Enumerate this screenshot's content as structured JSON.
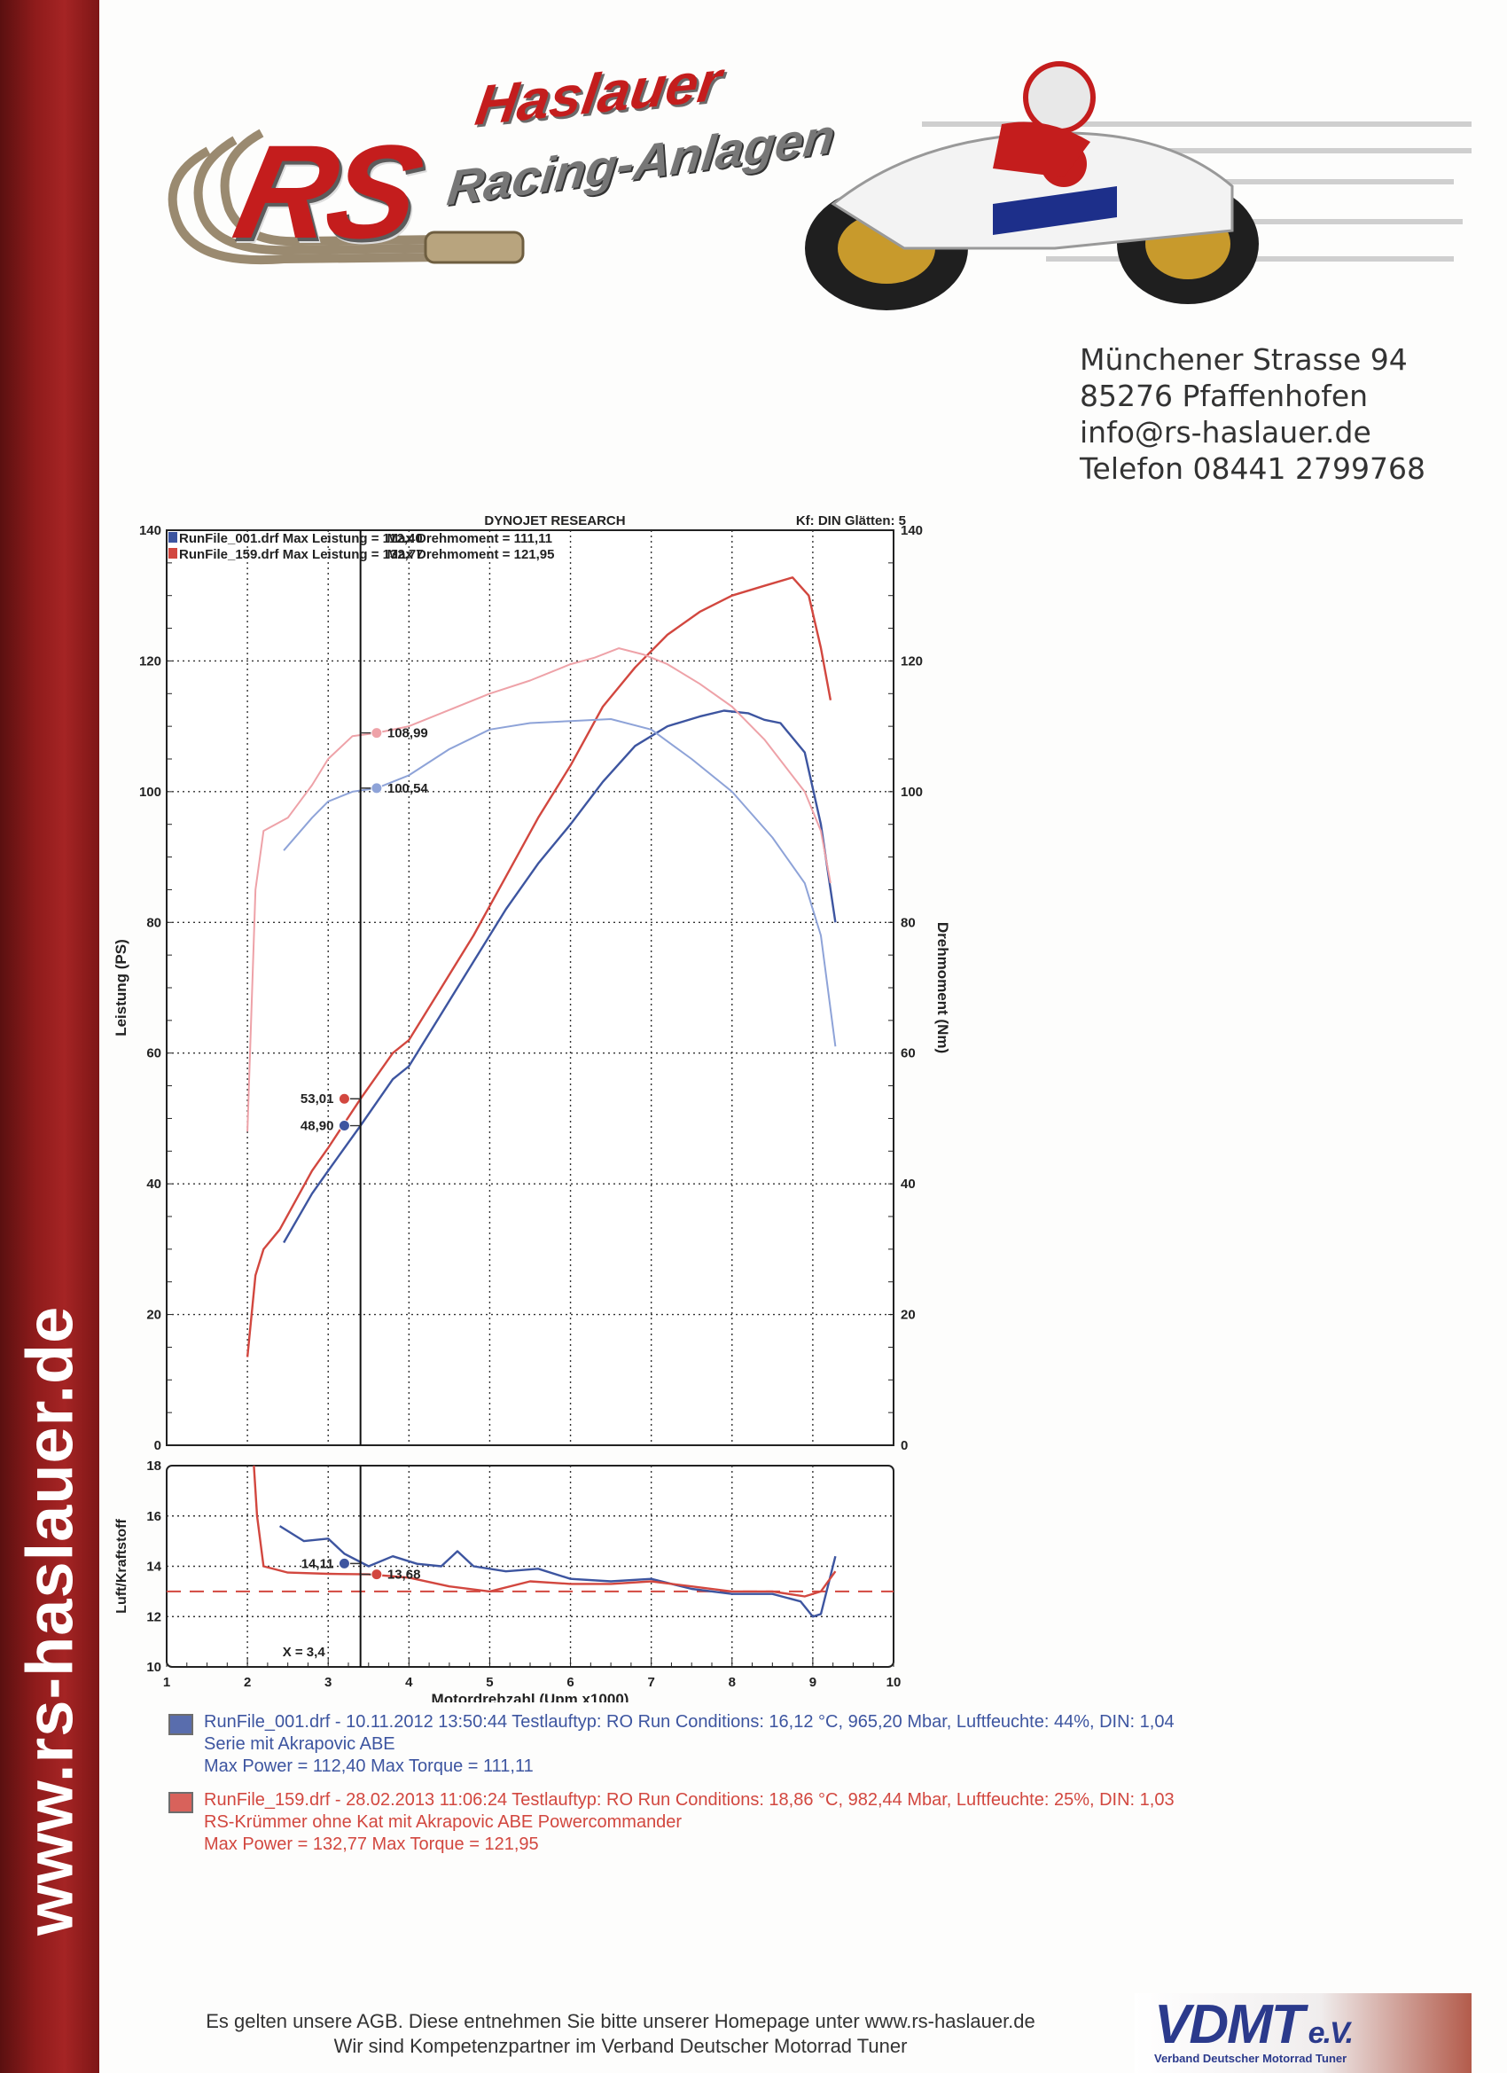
{
  "sidebar": {
    "url": "www.rs-haslauer.de"
  },
  "logo": {
    "brand": "RS",
    "name": "Haslauer",
    "tagline": "Racing-Anlagen"
  },
  "address": {
    "street": "Münchener Strasse 94",
    "city": "85276 Pfaffenhofen",
    "email": "info@rs-haslauer.de",
    "phone": "Telefon 08441 2799768"
  },
  "colors": {
    "blue": "#3d55a0",
    "red": "#d2473f",
    "blue_light": "#8ea3d8",
    "red_light": "#eea2a8",
    "accent": "#a52424"
  },
  "chart_data": [
    {
      "type": "line",
      "title": "DYNOJET RESEARCH",
      "corner_note": "Kf: DIN  Glätten: 5",
      "header_lines": [
        "RunFile_001.drf Max Leistung = 112,40",
        "RunFile_159.drf Max Leistung = 132,77",
        "Max Drehmoment = 111,11",
        "Max Drehmoment = 121,95"
      ],
      "xlabel": "Motordrehzahl (Upm x1000)",
      "ylabel": "Leistung (PS)",
      "y2label": "Drehmoment (Nm)",
      "xlim": [
        1,
        10
      ],
      "ylim": [
        0,
        140
      ],
      "x_ticks": [
        "1",
        "2",
        "3",
        "4",
        "5",
        "6",
        "7",
        "8",
        "9",
        "10"
      ],
      "y_ticks": [
        "0",
        "20",
        "40",
        "60",
        "80",
        "100",
        "120",
        "140"
      ],
      "cursor_x": 3.4,
      "grid": true,
      "series": [
        {
          "name": "RunFile_001.drf",
          "kind": "power",
          "color": "#3d55a0",
          "x": [
            2.45,
            2.8,
            3.0,
            3.4,
            3.8,
            4.0,
            4.4,
            4.8,
            5.2,
            5.6,
            6.0,
            6.4,
            6.8,
            7.2,
            7.6,
            7.9,
            8.2,
            8.4,
            8.6,
            8.9,
            9.1,
            9.28
          ],
          "y": [
            31.0,
            38.5,
            42.0,
            48.9,
            56.0,
            58.0,
            66.0,
            74.0,
            82.0,
            89.0,
            95.0,
            101.5,
            107.0,
            110.0,
            111.5,
            112.4,
            112.0,
            111.0,
            110.5,
            106.0,
            95.0,
            80.0
          ]
        },
        {
          "name": "RunFile_159.drf",
          "kind": "power",
          "color": "#d2473f",
          "x": [
            2.0,
            2.1,
            2.2,
            2.4,
            2.8,
            3.0,
            3.4,
            3.8,
            4.0,
            4.4,
            4.8,
            5.2,
            5.6,
            6.0,
            6.4,
            6.8,
            7.2,
            7.6,
            8.0,
            8.4,
            8.75,
            8.95,
            9.1,
            9.22
          ],
          "y": [
            13.5,
            26.0,
            30.0,
            33.0,
            42.0,
            45.5,
            53.0,
            60.0,
            62.0,
            70.0,
            78.0,
            87.0,
            96.0,
            104.0,
            113.0,
            119.0,
            124.0,
            127.5,
            130.0,
            131.5,
            132.77,
            130.0,
            122.0,
            114.0
          ]
        },
        {
          "name": "RunFile_001.drf",
          "kind": "torque",
          "color": "#8ea3d8",
          "x": [
            2.45,
            2.8,
            3.0,
            3.3,
            3.6,
            4.0,
            4.5,
            5.0,
            5.5,
            6.0,
            6.5,
            7.0,
            7.5,
            8.0,
            8.5,
            8.9,
            9.1,
            9.28
          ],
          "y": [
            91.0,
            96.0,
            98.5,
            100.0,
            100.54,
            102.5,
            106.5,
            109.5,
            110.5,
            110.8,
            111.11,
            109.5,
            105.0,
            100.0,
            93.0,
            86.0,
            78.0,
            61.0
          ]
        },
        {
          "name": "RunFile_159.drf",
          "kind": "torque",
          "color": "#eea2a8",
          "x": [
            2.0,
            2.1,
            2.2,
            2.5,
            2.8,
            3.0,
            3.3,
            3.6,
            4.0,
            4.5,
            5.0,
            5.5,
            6.0,
            6.3,
            6.6,
            6.9,
            7.2,
            7.6,
            8.0,
            8.4,
            8.9,
            9.1,
            9.22
          ],
          "y": [
            48.0,
            85.0,
            94.0,
            96.0,
            101.0,
            105.0,
            108.5,
            108.99,
            110.0,
            112.5,
            115.0,
            117.0,
            119.5,
            120.5,
            121.95,
            121.0,
            119.5,
            116.5,
            113.0,
            108.0,
            100.0,
            94.0,
            86.0
          ]
        }
      ],
      "annotations": [
        {
          "x": 3.6,
          "y": 108.99,
          "label": "108,99",
          "color": "#eea2a8",
          "side": "right"
        },
        {
          "x": 3.6,
          "y": 100.54,
          "label": "100,54",
          "color": "#8ea3d8",
          "side": "right"
        },
        {
          "x": 3.2,
          "y": 53.01,
          "label": "53,01",
          "color": "#d2473f",
          "side": "left"
        },
        {
          "x": 3.2,
          "y": 48.9,
          "label": "48,90",
          "color": "#3d55a0",
          "side": "left"
        }
      ]
    },
    {
      "type": "line",
      "ylabel": "Luft/Kraftstoff",
      "xlim": [
        1,
        10
      ],
      "ylim": [
        10,
        18
      ],
      "y_ticks": [
        "10",
        "12",
        "14",
        "16",
        "18"
      ],
      "reference_value": 13.0,
      "cursor_label": "X = 3,4",
      "series": [
        {
          "name": "RunFile_001.drf",
          "color": "#3d55a0",
          "x": [
            2.4,
            2.7,
            3.0,
            3.2,
            3.5,
            3.8,
            4.1,
            4.4,
            4.6,
            4.8,
            5.2,
            5.6,
            6.0,
            6.5,
            7.0,
            7.5,
            8.0,
            8.5,
            8.85,
            9.0,
            9.1,
            9.28
          ],
          "y": [
            15.6,
            15.0,
            15.1,
            14.5,
            14.0,
            14.4,
            14.1,
            14.0,
            14.6,
            14.0,
            13.8,
            13.9,
            13.5,
            13.4,
            13.5,
            13.1,
            12.9,
            12.9,
            12.6,
            12.0,
            12.1,
            14.4
          ]
        },
        {
          "name": "RunFile_159.drf",
          "color": "#d2473f",
          "x": [
            2.08,
            2.12,
            2.2,
            2.5,
            3.0,
            3.5,
            4.0,
            4.5,
            5.0,
            5.5,
            6.0,
            6.5,
            7.0,
            7.5,
            8.0,
            8.5,
            8.9,
            9.1,
            9.28
          ],
          "y": [
            18.0,
            16.0,
            14.0,
            13.75,
            13.7,
            13.68,
            13.55,
            13.2,
            13.0,
            13.4,
            13.3,
            13.3,
            13.4,
            13.2,
            13.0,
            13.0,
            12.8,
            13.0,
            13.8
          ]
        }
      ],
      "annotations": [
        {
          "x": 3.2,
          "y": 14.11,
          "label": "14,11",
          "color": "#3d55a0",
          "side": "left"
        },
        {
          "x": 3.6,
          "y": 13.68,
          "label": "13,68",
          "color": "#d2473f",
          "side": "right"
        }
      ]
    }
  ],
  "legend": [
    {
      "color": "#3d55a0",
      "line1": "RunFile_001.drf - 10.11.2012 13:50:44  Testlauftyp: RO  Run Conditions: 16,12 °C, 965,20 Mbar,  Luftfeuchte: 44%, DIN: 1,04",
      "line2": "Serie mit Akrapovic ABE",
      "line3": "Max Power = 112,40  Max Torque = 111,11"
    },
    {
      "color": "#d2473f",
      "line1": "RunFile_159.drf - 28.02.2013 11:06:24  Testlauftyp: RO  Run Conditions: 18,86 °C, 982,44 Mbar,  Luftfeuchte: 25%, DIN: 1,03",
      "line2": "RS-Krümmer ohne Kat mit Akrapovic ABE Powercommander",
      "line3": "Max Power = 132,77  Max Torque = 121,95"
    }
  ],
  "footer": {
    "line1": "Es gelten unsere AGB. Diese entnehmen Sie bitte unserer Homepage unter www.rs-haslauer.de",
    "line2": "Wir sind Kompetenzpartner im Verband Deutscher Motorrad Tuner"
  },
  "vdmt": {
    "word": "VDMT",
    "suffix": "e.V.",
    "subtitle": "Verband Deutscher Motorrad Tuner"
  }
}
